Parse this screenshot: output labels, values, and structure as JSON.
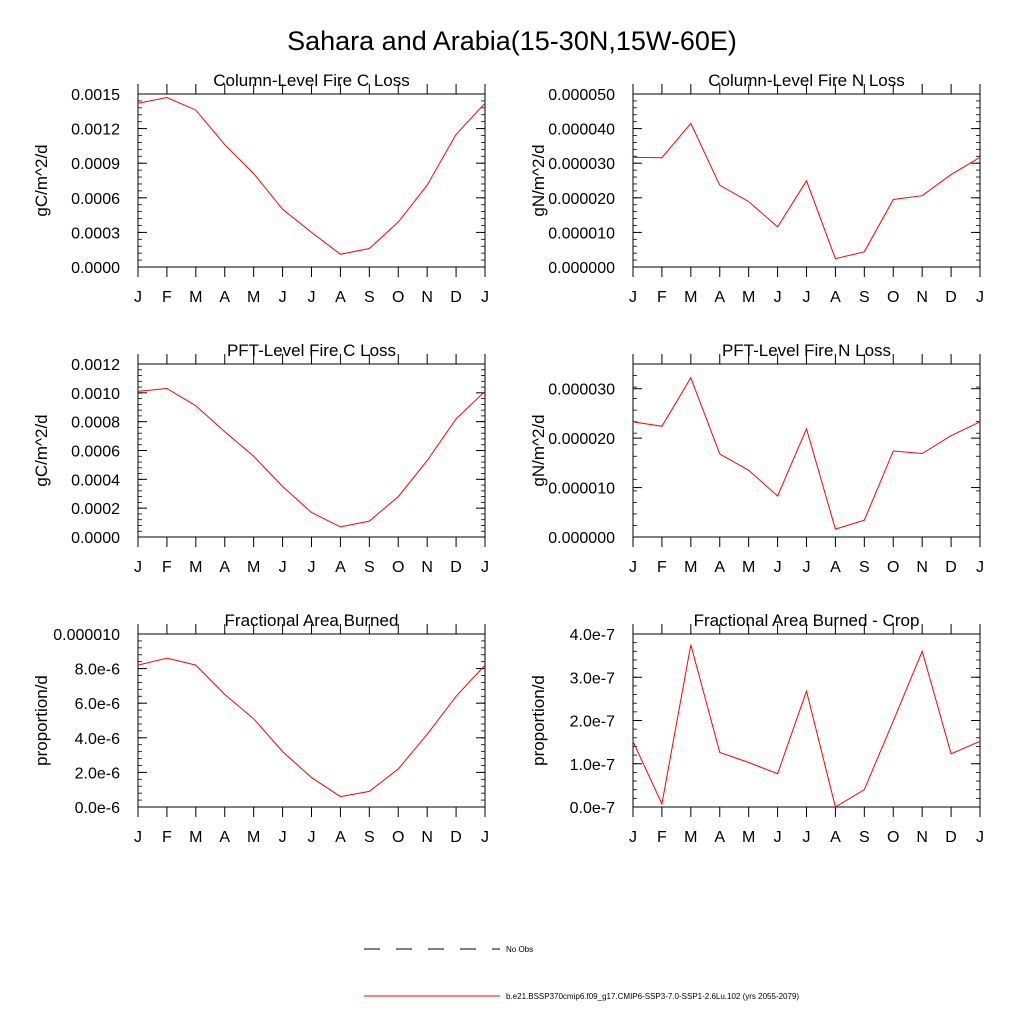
{
  "figure": {
    "title": "Sahara and Arabia(15-30N,15W-60E)",
    "months": [
      "J",
      "F",
      "M",
      "A",
      "M",
      "J",
      "J",
      "A",
      "S",
      "O",
      "N",
      "D",
      "J"
    ],
    "line_color": "#ff0000",
    "legend": [
      {
        "label": "No Obs",
        "style": "dashed",
        "color": "#000000"
      },
      {
        "label": "b.e21.BSSP370cmip6.f09_g17.CMIP6-SSP3-7.0-SSP1-2.6Lu.102 (yrs 2055-2079)",
        "style": "solid",
        "color": "#ff0000"
      }
    ]
  },
  "chart_data": [
    {
      "type": "line",
      "title": "Column-Level Fire C Loss",
      "ylabel": "gC/m^2/d",
      "ylim": [
        0,
        0.0015
      ],
      "yticks": [
        0,
        0.0003,
        0.0006,
        0.0009,
        0.0012,
        0.0015
      ],
      "ytick_labels": [
        "0.0000",
        "0.0003",
        "0.0006",
        "0.0009",
        "0.0012",
        "0.0015"
      ],
      "x": [
        "J",
        "F",
        "M",
        "A",
        "M",
        "J",
        "J",
        "A",
        "S",
        "O",
        "N",
        "D",
        "J"
      ],
      "series": [
        {
          "values": [
            0.00142,
            0.00147,
            0.00136,
            0.00106,
            0.00081,
            0.0005,
            0.0003,
            0.00011,
            0.00016,
            0.00039,
            0.00071,
            0.00115,
            0.00142
          ]
        }
      ]
    },
    {
      "type": "line",
      "title": "Column-Level Fire N Loss",
      "ylabel": "gN/m^2/d",
      "ylim": [
        0,
        5e-05
      ],
      "yticks": [
        0,
        1e-05,
        2e-05,
        3e-05,
        4e-05,
        5e-05
      ],
      "ytick_labels": [
        "0.000000",
        "0.000010",
        "0.000020",
        "0.000030",
        "0.000040",
        "0.000050"
      ],
      "x": [
        "J",
        "F",
        "M",
        "A",
        "M",
        "J",
        "J",
        "A",
        "S",
        "O",
        "N",
        "D",
        "J"
      ],
      "series": [
        {
          "values": [
            3.17e-05,
            3.16e-05,
            4.15e-05,
            2.36e-05,
            1.89e-05,
            1.16e-05,
            2.49e-05,
            2.4e-06,
            4.4e-06,
            1.95e-05,
            2.06e-05,
            2.67e-05,
            3.17e-05
          ]
        }
      ]
    },
    {
      "type": "line",
      "title": "PFT-Level Fire C Loss",
      "ylabel": "gC/m^2/d",
      "ylim": [
        0,
        0.0012
      ],
      "yticks": [
        0,
        0.0002,
        0.0004,
        0.0006,
        0.0008,
        0.001,
        0.0012
      ],
      "ytick_labels": [
        "0.0000",
        "0.0002",
        "0.0004",
        "0.0006",
        "0.0008",
        "0.0010",
        "0.0012"
      ],
      "x": [
        "J",
        "F",
        "M",
        "A",
        "M",
        "J",
        "J",
        "A",
        "S",
        "O",
        "N",
        "D",
        "J"
      ],
      "series": [
        {
          "values": [
            0.00101,
            0.00103,
            0.00091,
            0.00073,
            0.00056,
            0.00035,
            0.00017,
            7e-05,
            0.00011,
            0.00028,
            0.00053,
            0.00082,
            0.00101
          ]
        }
      ]
    },
    {
      "type": "line",
      "title": "PFT-Level Fire N Loss",
      "ylabel": "gN/m^2/d",
      "ylim": [
        0,
        3.5e-05
      ],
      "yticks": [
        0,
        1e-05,
        2e-05,
        3e-05
      ],
      "ytick_labels": [
        "0.000000",
        "0.000010",
        "0.000020",
        "0.000030"
      ],
      "x": [
        "J",
        "F",
        "M",
        "A",
        "M",
        "J",
        "J",
        "A",
        "S",
        "O",
        "N",
        "D",
        "J"
      ],
      "series": [
        {
          "values": [
            2.33e-05,
            2.24e-05,
            3.22e-05,
            1.68e-05,
            1.35e-05,
            8.3e-06,
            2.19e-05,
            1.6e-06,
            3.4e-06,
            1.74e-05,
            1.69e-05,
            2.05e-05,
            2.33e-05
          ]
        }
      ]
    },
    {
      "type": "line",
      "title": "Fractional Area Burned",
      "ylabel": "proportion/d",
      "ylim": [
        0,
        1e-05
      ],
      "yticks": [
        0,
        2e-06,
        4e-06,
        6e-06,
        8e-06,
        1e-05
      ],
      "ytick_labels": [
        "0.0e-6",
        "2.0e-6",
        "4.0e-6",
        "6.0e-6",
        "8.0e-6",
        "0.000010"
      ],
      "x": [
        "J",
        "F",
        "M",
        "A",
        "M",
        "J",
        "J",
        "A",
        "S",
        "O",
        "N",
        "D",
        "J"
      ],
      "series": [
        {
          "values": [
            8.2e-06,
            8.6e-06,
            8.2e-06,
            6.5e-06,
            5.1e-06,
            3.2e-06,
            1.7e-06,
            6e-07,
            9e-07,
            2.2e-06,
            4.2e-06,
            6.4e-06,
            8.2e-06
          ]
        }
      ]
    },
    {
      "type": "line",
      "title": "Fractional Area Burned - Crop",
      "ylabel": "proportion/d",
      "ylim": [
        0,
        4e-07
      ],
      "yticks": [
        0,
        1e-07,
        2e-07,
        3e-07,
        4e-07
      ],
      "ytick_labels": [
        "0.0e-7",
        "1.0e-7",
        "2.0e-7",
        "3.0e-7",
        "4.0e-7"
      ],
      "x": [
        "J",
        "F",
        "M",
        "A",
        "M",
        "J",
        "J",
        "A",
        "S",
        "O",
        "N",
        "D",
        "J"
      ],
      "series": [
        {
          "values": [
            1.52e-07,
            7e-09,
            3.75e-07,
            1.26e-07,
            1.03e-07,
            7.7e-08,
            2.68e-07,
            0.0,
            4e-08,
            1.99e-07,
            3.6e-07,
            1.23e-07,
            1.52e-07
          ]
        }
      ]
    }
  ]
}
